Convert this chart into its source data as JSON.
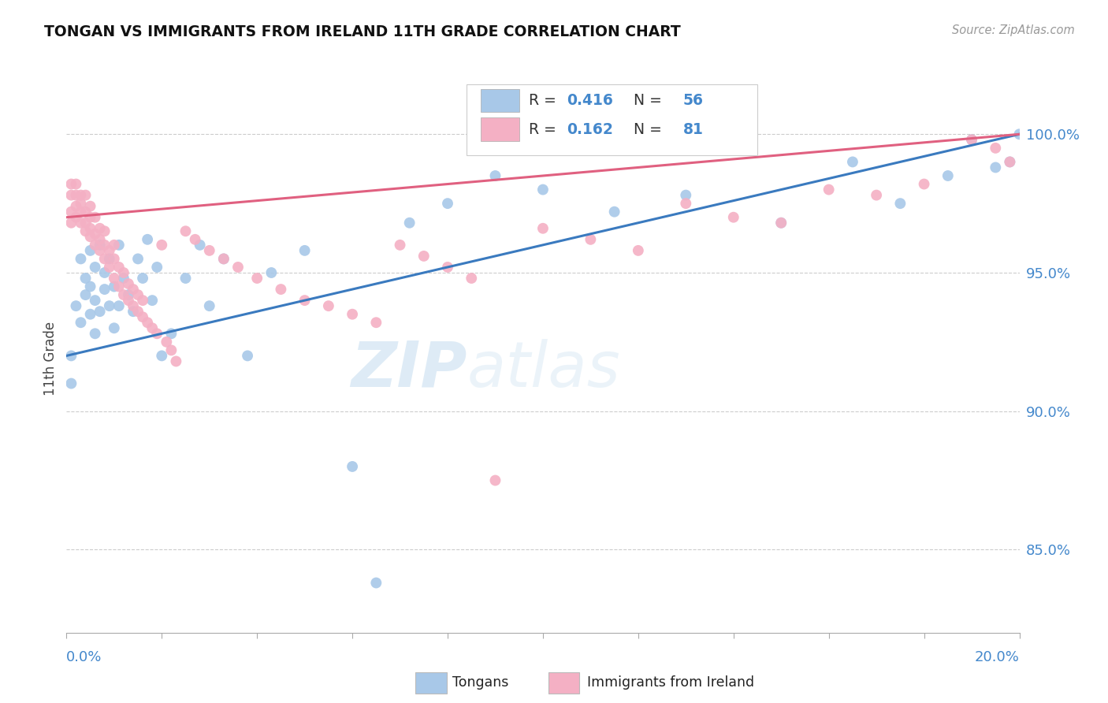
{
  "title": "TONGAN VS IMMIGRANTS FROM IRELAND 11TH GRADE CORRELATION CHART",
  "source": "Source: ZipAtlas.com",
  "ylabel": "11th Grade",
  "right_yticks": [
    "85.0%",
    "90.0%",
    "95.0%",
    "100.0%"
  ],
  "right_ytick_vals": [
    0.85,
    0.9,
    0.95,
    1.0
  ],
  "blue_color": "#a8c8e8",
  "pink_color": "#f4b0c4",
  "blue_line_color": "#3a7abf",
  "pink_line_color": "#e06080",
  "background_color": "#ffffff",
  "watermark_zip": "ZIP",
  "watermark_atlas": "atlas",
  "xmin": 0.0,
  "xmax": 0.2,
  "ymin": 0.82,
  "ymax": 1.018,
  "blue_R": "0.416",
  "blue_N": "56",
  "pink_R": "0.162",
  "pink_N": "81",
  "blue_scatter_x": [
    0.001,
    0.001,
    0.002,
    0.003,
    0.003,
    0.004,
    0.004,
    0.005,
    0.005,
    0.005,
    0.006,
    0.006,
    0.006,
    0.007,
    0.007,
    0.008,
    0.008,
    0.009,
    0.009,
    0.01,
    0.01,
    0.011,
    0.011,
    0.012,
    0.013,
    0.014,
    0.015,
    0.016,
    0.017,
    0.018,
    0.019,
    0.02,
    0.022,
    0.025,
    0.028,
    0.03,
    0.033,
    0.038,
    0.043,
    0.05,
    0.06,
    0.065,
    0.072,
    0.08,
    0.09,
    0.1,
    0.115,
    0.13,
    0.15,
    0.165,
    0.175,
    0.185,
    0.19,
    0.195,
    0.198,
    0.2
  ],
  "blue_scatter_y": [
    0.92,
    0.91,
    0.938,
    0.955,
    0.932,
    0.948,
    0.942,
    0.958,
    0.945,
    0.935,
    0.952,
    0.94,
    0.928,
    0.96,
    0.936,
    0.95,
    0.944,
    0.938,
    0.955,
    0.945,
    0.93,
    0.96,
    0.938,
    0.948,
    0.942,
    0.936,
    0.955,
    0.948,
    0.962,
    0.94,
    0.952,
    0.92,
    0.928,
    0.948,
    0.96,
    0.938,
    0.955,
    0.92,
    0.95,
    0.958,
    0.88,
    0.838,
    0.968,
    0.975,
    0.985,
    0.98,
    0.972,
    0.978,
    0.968,
    0.99,
    0.975,
    0.985,
    0.998,
    0.988,
    0.99,
    1.0
  ],
  "pink_scatter_x": [
    0.001,
    0.001,
    0.001,
    0.001,
    0.002,
    0.002,
    0.002,
    0.002,
    0.003,
    0.003,
    0.003,
    0.003,
    0.004,
    0.004,
    0.004,
    0.004,
    0.005,
    0.005,
    0.005,
    0.005,
    0.006,
    0.006,
    0.006,
    0.007,
    0.007,
    0.007,
    0.008,
    0.008,
    0.008,
    0.009,
    0.009,
    0.01,
    0.01,
    0.01,
    0.011,
    0.011,
    0.012,
    0.012,
    0.013,
    0.013,
    0.014,
    0.014,
    0.015,
    0.015,
    0.016,
    0.016,
    0.017,
    0.018,
    0.019,
    0.02,
    0.021,
    0.022,
    0.023,
    0.025,
    0.027,
    0.03,
    0.033,
    0.036,
    0.04,
    0.045,
    0.05,
    0.055,
    0.06,
    0.065,
    0.07,
    0.075,
    0.08,
    0.085,
    0.09,
    0.1,
    0.11,
    0.12,
    0.13,
    0.14,
    0.15,
    0.16,
    0.17,
    0.18,
    0.19,
    0.195,
    0.198
  ],
  "pink_scatter_y": [
    0.968,
    0.972,
    0.978,
    0.982,
    0.97,
    0.974,
    0.978,
    0.982,
    0.968,
    0.972,
    0.975,
    0.978,
    0.965,
    0.968,
    0.972,
    0.978,
    0.963,
    0.966,
    0.97,
    0.974,
    0.96,
    0.964,
    0.97,
    0.958,
    0.962,
    0.966,
    0.955,
    0.96,
    0.965,
    0.952,
    0.958,
    0.948,
    0.955,
    0.96,
    0.945,
    0.952,
    0.942,
    0.95,
    0.94,
    0.946,
    0.938,
    0.944,
    0.936,
    0.942,
    0.934,
    0.94,
    0.932,
    0.93,
    0.928,
    0.96,
    0.925,
    0.922,
    0.918,
    0.965,
    0.962,
    0.958,
    0.955,
    0.952,
    0.948,
    0.944,
    0.94,
    0.938,
    0.935,
    0.932,
    0.96,
    0.956,
    0.952,
    0.948,
    0.875,
    0.966,
    0.962,
    0.958,
    0.975,
    0.97,
    0.968,
    0.98,
    0.978,
    0.982,
    0.998,
    0.995,
    0.99
  ]
}
